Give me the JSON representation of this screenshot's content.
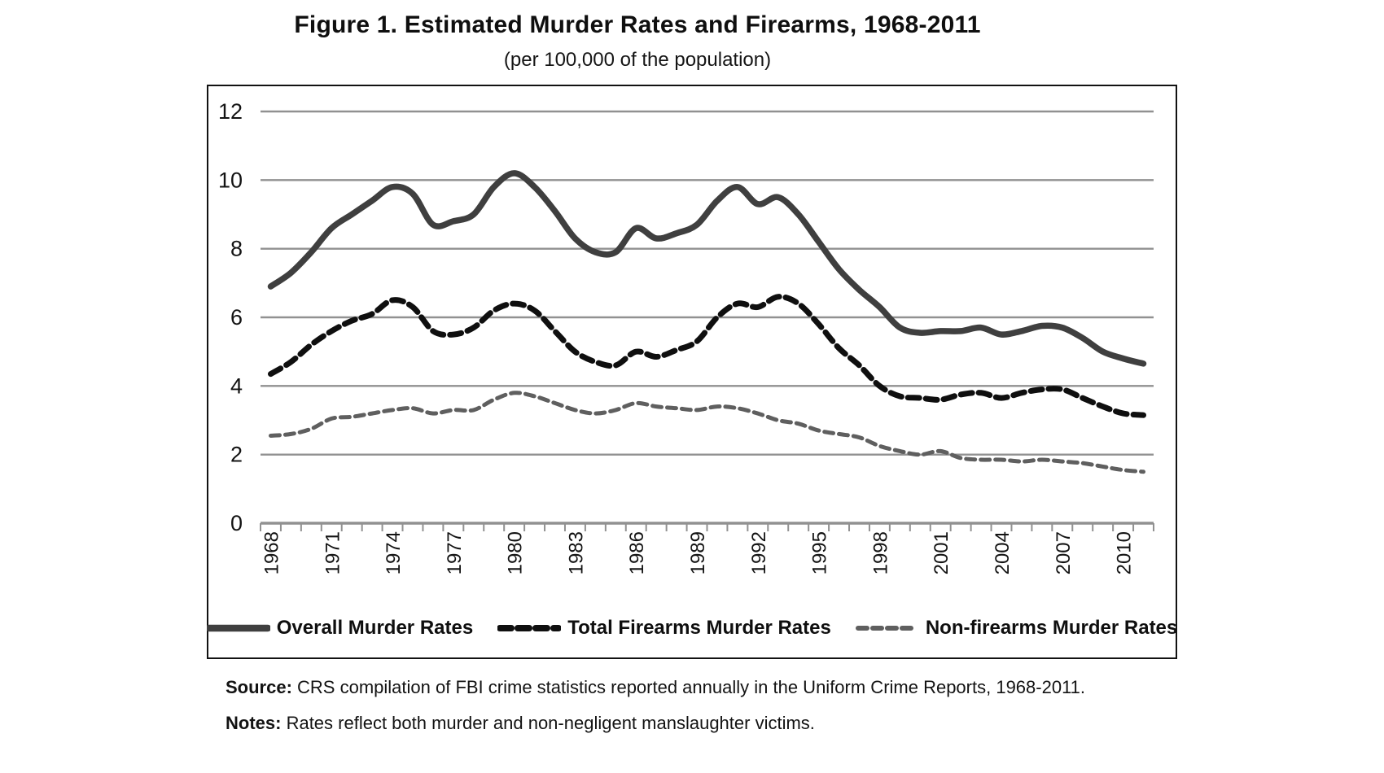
{
  "figure": {
    "title": "Figure 1. Estimated Murder Rates and Firearms, 1968-2011",
    "subtitle": "(per 100,000 of the population)",
    "source_label": "Source:",
    "source_text": " CRS compilation of FBI crime statistics reported annually in the Uniform Crime Reports, 1968-2011.",
    "notes_label": "Notes:",
    "notes_text": " Rates reflect both murder and non-negligent manslaughter victims."
  },
  "chart_data": {
    "type": "line",
    "title": "Figure 1. Estimated Murder Rates and Firearms, 1968-2011",
    "subtitle": "(per 100,000 of the population)",
    "xlabel": "",
    "ylabel": "",
    "ylim": [
      0,
      12
    ],
    "yticks": [
      0,
      2,
      4,
      6,
      8,
      10,
      12
    ],
    "grid": true,
    "gridline_color": "#919191",
    "axis_color": "#919191",
    "legend_position": "bottom",
    "x": [
      1968,
      1969,
      1970,
      1971,
      1972,
      1973,
      1974,
      1975,
      1976,
      1977,
      1978,
      1979,
      1980,
      1981,
      1982,
      1983,
      1984,
      1985,
      1986,
      1987,
      1988,
      1989,
      1990,
      1991,
      1992,
      1993,
      1994,
      1995,
      1996,
      1997,
      1998,
      1999,
      2000,
      2001,
      2002,
      2003,
      2004,
      2005,
      2006,
      2007,
      2008,
      2009,
      2010,
      2011
    ],
    "x_tick_labels": [
      "1968",
      "1971",
      "1974",
      "1977",
      "1980",
      "1983",
      "1986",
      "1989",
      "1992",
      "1995",
      "1998",
      "2001",
      "2004",
      "2007",
      "2010"
    ],
    "x_label_interval": 3,
    "series": [
      {
        "name": "Overall Murder Rates",
        "color": "#3f3f3f",
        "dash": "",
        "width": 7.5,
        "values": [
          6.9,
          7.3,
          7.9,
          8.6,
          9.0,
          9.4,
          9.8,
          9.6,
          8.7,
          8.8,
          9.0,
          9.8,
          10.2,
          9.8,
          9.1,
          8.3,
          7.9,
          7.9,
          8.6,
          8.3,
          8.45,
          8.7,
          9.4,
          9.8,
          9.3,
          9.5,
          9.0,
          8.2,
          7.4,
          6.8,
          6.3,
          5.7,
          5.55,
          5.6,
          5.6,
          5.7,
          5.5,
          5.6,
          5.75,
          5.7,
          5.4,
          5.0,
          4.8,
          4.65
        ]
      },
      {
        "name": "Total Firearms Murder Rates",
        "color": "#0f0f0f",
        "dash": "14 8",
        "width": 7,
        "values": [
          4.35,
          4.7,
          5.2,
          5.6,
          5.9,
          6.1,
          6.5,
          6.3,
          5.6,
          5.5,
          5.7,
          6.2,
          6.4,
          6.2,
          5.6,
          5.0,
          4.7,
          4.6,
          5.0,
          4.85,
          5.05,
          5.3,
          6.0,
          6.4,
          6.3,
          6.6,
          6.4,
          5.8,
          5.1,
          4.6,
          4.0,
          3.7,
          3.65,
          3.6,
          3.75,
          3.8,
          3.65,
          3.8,
          3.9,
          3.9,
          3.65,
          3.4,
          3.2,
          3.15
        ]
      },
      {
        "name": "Non-firearms Murder Rates",
        "color": "#5f5f5f",
        "dash": "11 7",
        "width": 5,
        "values": [
          2.55,
          2.6,
          2.75,
          3.05,
          3.1,
          3.2,
          3.3,
          3.35,
          3.2,
          3.3,
          3.3,
          3.6,
          3.8,
          3.7,
          3.5,
          3.3,
          3.2,
          3.3,
          3.5,
          3.4,
          3.35,
          3.3,
          3.4,
          3.35,
          3.2,
          3.0,
          2.9,
          2.7,
          2.6,
          2.5,
          2.25,
          2.1,
          2.0,
          2.1,
          1.9,
          1.85,
          1.85,
          1.8,
          1.85,
          1.8,
          1.75,
          1.65,
          1.55,
          1.5
        ]
      }
    ]
  }
}
